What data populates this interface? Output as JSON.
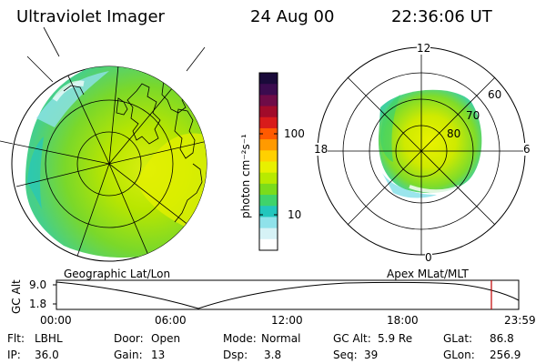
{
  "header": {
    "instrument": "Ultraviolet Imager",
    "date": "24 Aug 00",
    "time": "22:36:06 UT"
  },
  "colorbar": {
    "label": "photon cm⁻²s⁻¹",
    "ticks": [
      "100",
      "10"
    ],
    "colors": [
      "#1a0a3a",
      "#3b0b4f",
      "#6e0b47",
      "#a10b2a",
      "#d81b1b",
      "#ff5a00",
      "#ff9a00",
      "#ffd000",
      "#e8f000",
      "#b8ea00",
      "#7adc1c",
      "#3fd36b",
      "#23c6bd",
      "#8fe2ea",
      "#d6f2f6",
      "#ffffff"
    ]
  },
  "geo_panel": {
    "label": "Geographic Lat/Lon"
  },
  "mag_panel": {
    "label": "Apex MLat/MLT",
    "mlt_labels": {
      "top": "12",
      "left": "18",
      "right": "6",
      "bottom": "0"
    },
    "lat_labels": [
      "60",
      "70",
      "80"
    ]
  },
  "orbit_plot": {
    "ylabel": "GC Alt",
    "yticks": [
      "9.0",
      "1.8"
    ],
    "xticks": [
      "00:00",
      "06:00",
      "12:00",
      "18:00",
      "23:59"
    ],
    "marker_color": "#c00000"
  },
  "info": {
    "flt_label": "Flt:",
    "flt_value": "LBHL",
    "ip_label": "IP:",
    "ip_value": "36.0",
    "door_label": "Door:",
    "door_value": "Open",
    "gain_label": "Gain:",
    "gain_value": "13",
    "mode_label": "Mode:",
    "mode_value": "Normal",
    "dsp_label": "Dsp:",
    "dsp_value": "3.8",
    "gcalt_label": "GC Alt:",
    "gcalt_value": "5.9 Re",
    "seq_label": "Seq:",
    "seq_value": "39",
    "glat_label": "GLat:",
    "glat_value": "86.8",
    "glon_label": "GLon:",
    "glon_value": "256.9"
  }
}
